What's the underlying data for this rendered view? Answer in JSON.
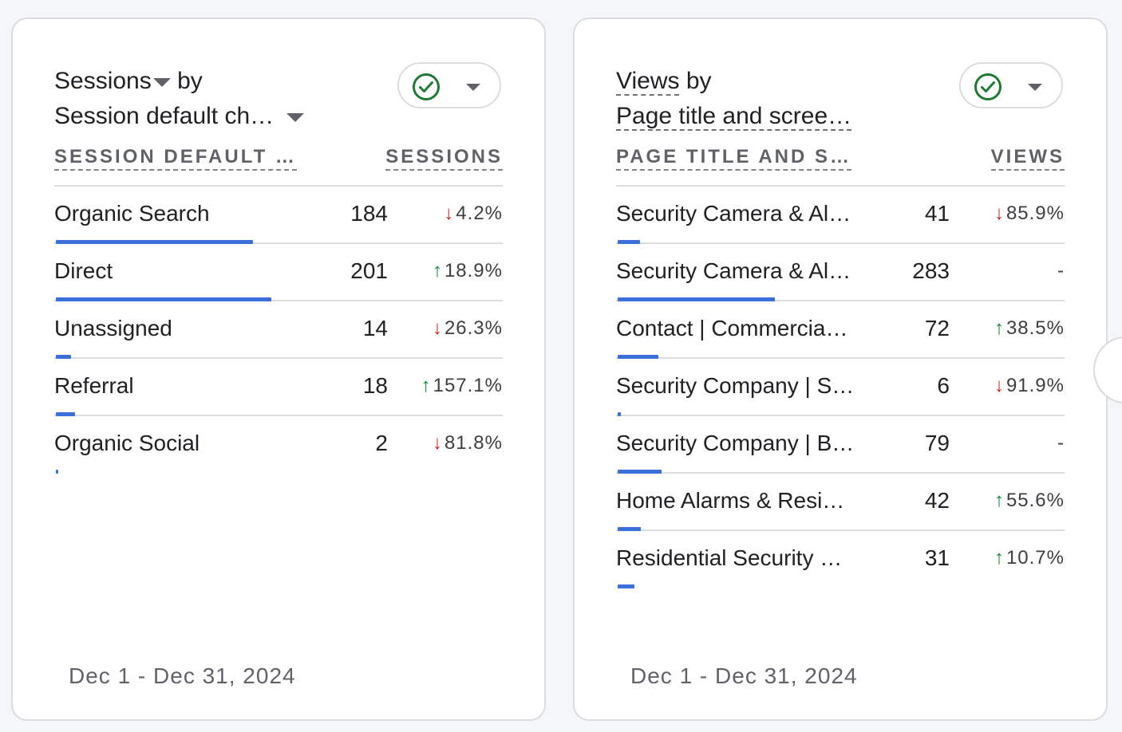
{
  "left_card": {
    "title_metric": "Sessions",
    "title_by": "by",
    "title_dimension": "Session default ch…",
    "col_dimension": "SESSION DEFAULT …",
    "col_metric": "SESSIONS",
    "rows": [
      {
        "label": "Organic Search",
        "value": "184",
        "change": "4.2%",
        "direction": "down",
        "bar_fraction": 0.44
      },
      {
        "label": "Direct",
        "value": "201",
        "change": "18.9%",
        "direction": "up",
        "bar_fraction": 0.48
      },
      {
        "label": "Unassigned",
        "value": "14",
        "change": "26.3%",
        "direction": "down",
        "bar_fraction": 0.033
      },
      {
        "label": "Referral",
        "value": "18",
        "change": "157.1%",
        "direction": "up",
        "bar_fraction": 0.043
      },
      {
        "label": "Organic Social",
        "value": "2",
        "change": "81.8%",
        "direction": "down",
        "bar_fraction": 0.005
      }
    ],
    "date_range": "Dec 1 - Dec 31, 2024"
  },
  "right_card": {
    "title_metric": "Views",
    "title_by": "by",
    "title_dimension": "Page title and scree…",
    "col_dimension": "PAGE TITLE AND S…",
    "col_metric": "VIEWS",
    "rows": [
      {
        "label": "Security Camera & Al…",
        "value": "41",
        "change": "85.9%",
        "direction": "down",
        "bar_fraction": 0.05
      },
      {
        "label": "Security Camera & Al…",
        "value": "283",
        "change": "-",
        "direction": "none",
        "bar_fraction": 0.35
      },
      {
        "label": "Contact | Commercia…",
        "value": "72",
        "change": "38.5%",
        "direction": "up",
        "bar_fraction": 0.09
      },
      {
        "label": "Security Company | S…",
        "value": "6",
        "change": "91.9%",
        "direction": "down",
        "bar_fraction": 0.007
      },
      {
        "label": "Security Company | B…",
        "value": "79",
        "change": "-",
        "direction": "none",
        "bar_fraction": 0.098
      },
      {
        "label": "Home Alarms & Resi…",
        "value": "42",
        "change": "55.6%",
        "direction": "up",
        "bar_fraction": 0.052
      },
      {
        "label": "Residential Security …",
        "value": "31",
        "change": "10.7%",
        "direction": "up",
        "bar_fraction": 0.038
      }
    ],
    "date_range": "Dec 1 - Dec 31, 2024"
  },
  "icons": {
    "status": "check-circle-icon",
    "dropdown": "chevron-down-icon"
  },
  "colors": {
    "bar": "#3b6fd8",
    "down": "#c5221f",
    "up": "#188038",
    "check": "#1e7a34"
  }
}
